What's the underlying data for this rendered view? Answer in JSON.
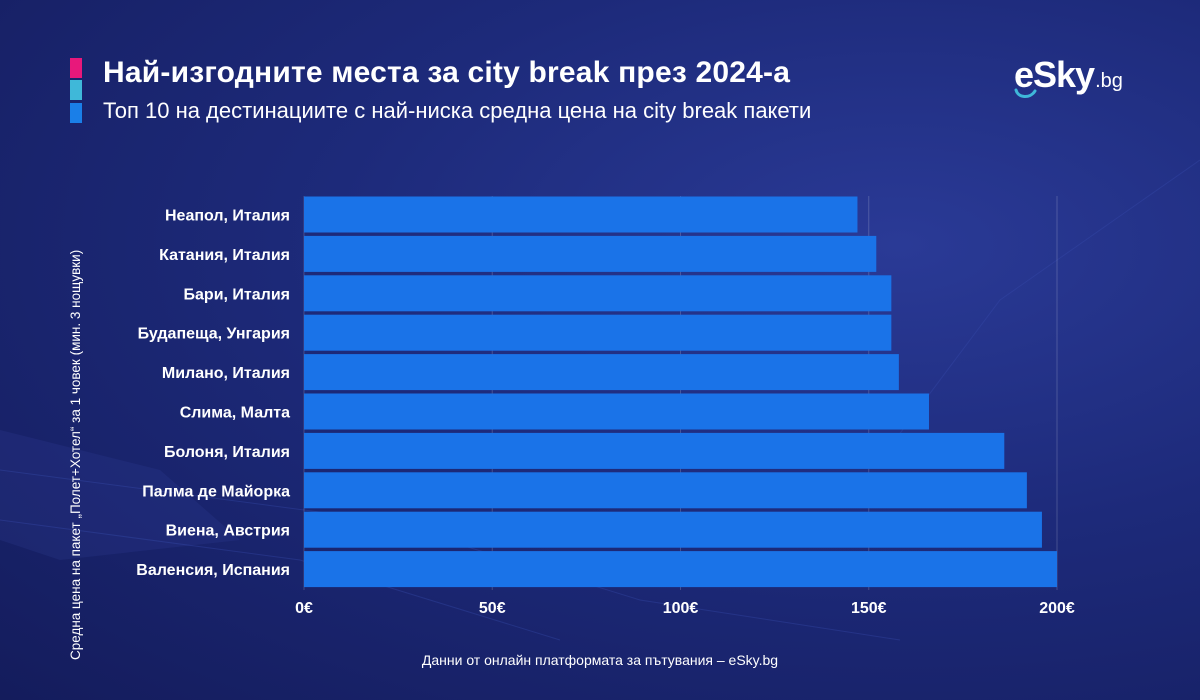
{
  "header": {
    "title": "Най-изгодните места за city break през 2024-а",
    "subtitle": "Топ 10 на дестинациите с най-ниска средна цена на city break пакети"
  },
  "logo": {
    "word": "eSky",
    "tld": ".bg"
  },
  "colors": {
    "bar": "#1a73e8",
    "accent_pink": "#e8187b",
    "accent_cyan": "#3fb8d9",
    "accent_blue": "#1a7fe8",
    "background": "#1d2a7a"
  },
  "footer": {
    "source": "Данни от онлайн платформата за пътувания – eSky.bg"
  },
  "chart_data": {
    "type": "bar",
    "orientation": "horizontal",
    "ylabel": "Средна цена на пакет „Полет+Хотел“ за 1 човек (мин. 3 нощувки)",
    "categories": [
      "Неапол, Италия",
      "Катания, Италия",
      "Бари, Италия",
      "Будапеща, Унгария",
      "Милано, Италия",
      "Слима, Малта",
      "Болоня, Италия",
      "Палма де Майорка",
      "Виена, Австрия",
      "Валенсия, Испания"
    ],
    "values": [
      147,
      152,
      156,
      156,
      158,
      166,
      186,
      192,
      196,
      200
    ],
    "xlim": [
      0,
      200
    ],
    "xticks": [
      0,
      50,
      100,
      150,
      200
    ],
    "xtick_labels": [
      "0€",
      "50€",
      "100€",
      "150€",
      "200€"
    ],
    "grid": true
  }
}
